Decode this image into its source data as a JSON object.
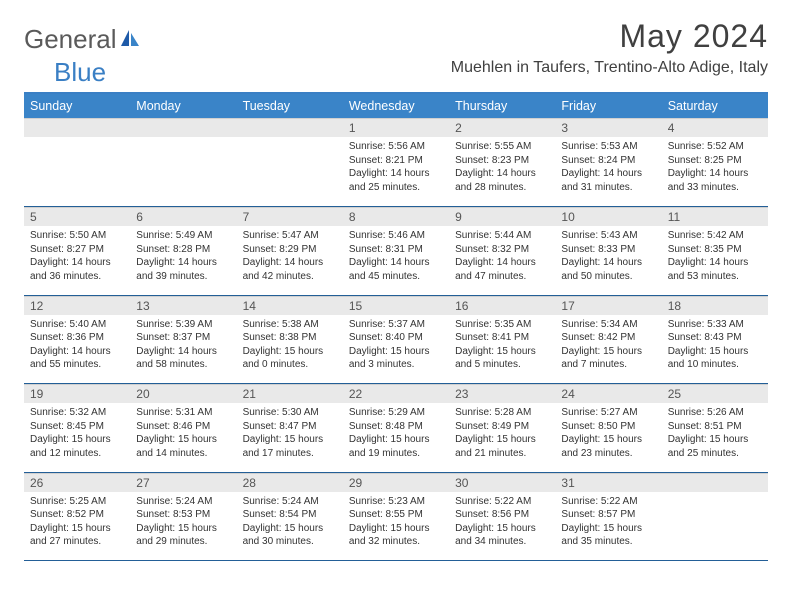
{
  "logo": {
    "part1": "General",
    "part2": "Blue"
  },
  "title": "May 2024",
  "location": "Muehlen in Taufers, Trentino-Alto Adige, Italy",
  "colors": {
    "header_bg": "#3a84c8",
    "header_text": "#ffffff",
    "divider": "#3a7fc4",
    "row_border": "#235f97",
    "daybar_bg": "#e9e9e9",
    "text": "#333333",
    "logo_gray": "#5a5a5a",
    "logo_blue": "#3a7fc4"
  },
  "typography": {
    "title_fontsize": 32,
    "location_fontsize": 16,
    "dayheader_fontsize": 12.5,
    "daynum_fontsize": 12,
    "body_fontsize": 10
  },
  "weekdays": [
    "Sunday",
    "Monday",
    "Tuesday",
    "Wednesday",
    "Thursday",
    "Friday",
    "Saturday"
  ],
  "weeks": [
    [
      {
        "day": "",
        "lines": []
      },
      {
        "day": "",
        "lines": []
      },
      {
        "day": "",
        "lines": []
      },
      {
        "day": "1",
        "lines": [
          "Sunrise: 5:56 AM",
          "Sunset: 8:21 PM",
          "Daylight: 14 hours",
          "and 25 minutes."
        ]
      },
      {
        "day": "2",
        "lines": [
          "Sunrise: 5:55 AM",
          "Sunset: 8:23 PM",
          "Daylight: 14 hours",
          "and 28 minutes."
        ]
      },
      {
        "day": "3",
        "lines": [
          "Sunrise: 5:53 AM",
          "Sunset: 8:24 PM",
          "Daylight: 14 hours",
          "and 31 minutes."
        ]
      },
      {
        "day": "4",
        "lines": [
          "Sunrise: 5:52 AM",
          "Sunset: 8:25 PM",
          "Daylight: 14 hours",
          "and 33 minutes."
        ]
      }
    ],
    [
      {
        "day": "5",
        "lines": [
          "Sunrise: 5:50 AM",
          "Sunset: 8:27 PM",
          "Daylight: 14 hours",
          "and 36 minutes."
        ]
      },
      {
        "day": "6",
        "lines": [
          "Sunrise: 5:49 AM",
          "Sunset: 8:28 PM",
          "Daylight: 14 hours",
          "and 39 minutes."
        ]
      },
      {
        "day": "7",
        "lines": [
          "Sunrise: 5:47 AM",
          "Sunset: 8:29 PM",
          "Daylight: 14 hours",
          "and 42 minutes."
        ]
      },
      {
        "day": "8",
        "lines": [
          "Sunrise: 5:46 AM",
          "Sunset: 8:31 PM",
          "Daylight: 14 hours",
          "and 45 minutes."
        ]
      },
      {
        "day": "9",
        "lines": [
          "Sunrise: 5:44 AM",
          "Sunset: 8:32 PM",
          "Daylight: 14 hours",
          "and 47 minutes."
        ]
      },
      {
        "day": "10",
        "lines": [
          "Sunrise: 5:43 AM",
          "Sunset: 8:33 PM",
          "Daylight: 14 hours",
          "and 50 minutes."
        ]
      },
      {
        "day": "11",
        "lines": [
          "Sunrise: 5:42 AM",
          "Sunset: 8:35 PM",
          "Daylight: 14 hours",
          "and 53 minutes."
        ]
      }
    ],
    [
      {
        "day": "12",
        "lines": [
          "Sunrise: 5:40 AM",
          "Sunset: 8:36 PM",
          "Daylight: 14 hours",
          "and 55 minutes."
        ]
      },
      {
        "day": "13",
        "lines": [
          "Sunrise: 5:39 AM",
          "Sunset: 8:37 PM",
          "Daylight: 14 hours",
          "and 58 minutes."
        ]
      },
      {
        "day": "14",
        "lines": [
          "Sunrise: 5:38 AM",
          "Sunset: 8:38 PM",
          "Daylight: 15 hours",
          "and 0 minutes."
        ]
      },
      {
        "day": "15",
        "lines": [
          "Sunrise: 5:37 AM",
          "Sunset: 8:40 PM",
          "Daylight: 15 hours",
          "and 3 minutes."
        ]
      },
      {
        "day": "16",
        "lines": [
          "Sunrise: 5:35 AM",
          "Sunset: 8:41 PM",
          "Daylight: 15 hours",
          "and 5 minutes."
        ]
      },
      {
        "day": "17",
        "lines": [
          "Sunrise: 5:34 AM",
          "Sunset: 8:42 PM",
          "Daylight: 15 hours",
          "and 7 minutes."
        ]
      },
      {
        "day": "18",
        "lines": [
          "Sunrise: 5:33 AM",
          "Sunset: 8:43 PM",
          "Daylight: 15 hours",
          "and 10 minutes."
        ]
      }
    ],
    [
      {
        "day": "19",
        "lines": [
          "Sunrise: 5:32 AM",
          "Sunset: 8:45 PM",
          "Daylight: 15 hours",
          "and 12 minutes."
        ]
      },
      {
        "day": "20",
        "lines": [
          "Sunrise: 5:31 AM",
          "Sunset: 8:46 PM",
          "Daylight: 15 hours",
          "and 14 minutes."
        ]
      },
      {
        "day": "21",
        "lines": [
          "Sunrise: 5:30 AM",
          "Sunset: 8:47 PM",
          "Daylight: 15 hours",
          "and 17 minutes."
        ]
      },
      {
        "day": "22",
        "lines": [
          "Sunrise: 5:29 AM",
          "Sunset: 8:48 PM",
          "Daylight: 15 hours",
          "and 19 minutes."
        ]
      },
      {
        "day": "23",
        "lines": [
          "Sunrise: 5:28 AM",
          "Sunset: 8:49 PM",
          "Daylight: 15 hours",
          "and 21 minutes."
        ]
      },
      {
        "day": "24",
        "lines": [
          "Sunrise: 5:27 AM",
          "Sunset: 8:50 PM",
          "Daylight: 15 hours",
          "and 23 minutes."
        ]
      },
      {
        "day": "25",
        "lines": [
          "Sunrise: 5:26 AM",
          "Sunset: 8:51 PM",
          "Daylight: 15 hours",
          "and 25 minutes."
        ]
      }
    ],
    [
      {
        "day": "26",
        "lines": [
          "Sunrise: 5:25 AM",
          "Sunset: 8:52 PM",
          "Daylight: 15 hours",
          "and 27 minutes."
        ]
      },
      {
        "day": "27",
        "lines": [
          "Sunrise: 5:24 AM",
          "Sunset: 8:53 PM",
          "Daylight: 15 hours",
          "and 29 minutes."
        ]
      },
      {
        "day": "28",
        "lines": [
          "Sunrise: 5:24 AM",
          "Sunset: 8:54 PM",
          "Daylight: 15 hours",
          "and 30 minutes."
        ]
      },
      {
        "day": "29",
        "lines": [
          "Sunrise: 5:23 AM",
          "Sunset: 8:55 PM",
          "Daylight: 15 hours",
          "and 32 minutes."
        ]
      },
      {
        "day": "30",
        "lines": [
          "Sunrise: 5:22 AM",
          "Sunset: 8:56 PM",
          "Daylight: 15 hours",
          "and 34 minutes."
        ]
      },
      {
        "day": "31",
        "lines": [
          "Sunrise: 5:22 AM",
          "Sunset: 8:57 PM",
          "Daylight: 15 hours",
          "and 35 minutes."
        ]
      },
      {
        "day": "",
        "lines": []
      }
    ]
  ]
}
